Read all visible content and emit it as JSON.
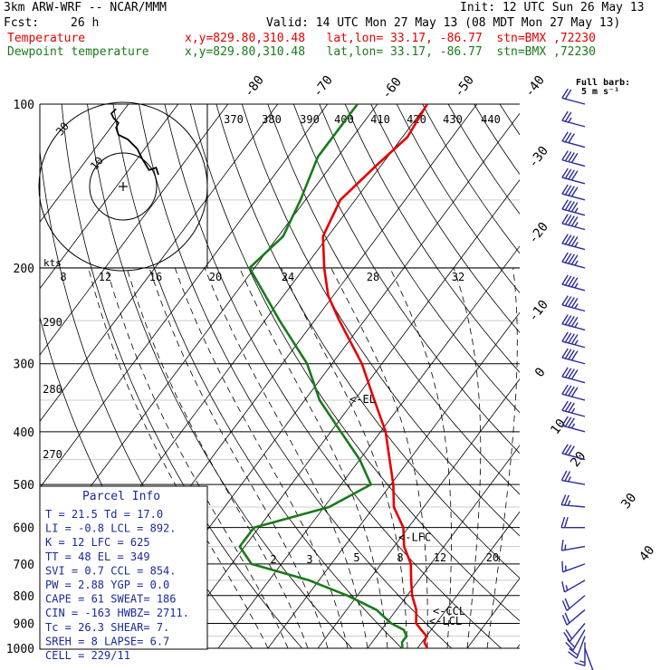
{
  "header": {
    "title": "3km ARW-WRF -- NCAR/MMM",
    "init": "Init: 12 UTC Sun 26 May 13",
    "fcst_label": "Fcst:",
    "fcst_value": "26 h",
    "valid": "Valid: 14 UTC Mon 27 May 13 (08 MDT Mon 27 May 13)",
    "temp_label": "Temperature",
    "temp_loc": "x,y=829.80,310.48   lat,lon= 33.17, -86.77  stn=BMX ,72230",
    "dew_label": "Dewpoint temperature",
    "dew_loc": "x,y=829.80,310.48   lat,lon= 33.17, -86.77  stn=BMX ,72230"
  },
  "barb_legend": {
    "line1": "Full barb:",
    "line2": "5 m s⁻¹"
  },
  "colors": {
    "temperature": "#e60000",
    "dewpoint": "#1a7a1a",
    "lines": "#000000",
    "hodograph": "#000000"
  },
  "chart_data": {
    "type": "skew-t",
    "pressure_levels": [
      "100",
      "200",
      "300",
      "400",
      "500",
      "600",
      "700",
      "800",
      "900",
      "1000"
    ],
    "temperature_labels": [
      "-80",
      "-70",
      "-60",
      "-50",
      "-40",
      "-30",
      "-20",
      "-10",
      "0",
      "10",
      "20",
      "30",
      "40"
    ],
    "theta_labels": [
      "370",
      "380",
      "390",
      "400",
      "410",
      "420",
      "430",
      "440"
    ],
    "dry_adiabat_labels": [
      "290",
      "280",
      "270"
    ],
    "mixing_ratio_labels": [
      "2",
      "3",
      "5",
      "8",
      "12",
      "20"
    ],
    "series": [
      {
        "name": "Temperature",
        "points": [
          [
            1000,
            22
          ],
          [
            975,
            20.5
          ],
          [
            950,
            20
          ],
          [
            925,
            18
          ],
          [
            900,
            16
          ],
          [
            850,
            14
          ],
          [
            800,
            11
          ],
          [
            750,
            8.5
          ],
          [
            700,
            6
          ],
          [
            650,
            2
          ],
          [
            600,
            -1
          ],
          [
            550,
            -6
          ],
          [
            500,
            -9.5
          ],
          [
            450,
            -14
          ],
          [
            400,
            -19
          ],
          [
            350,
            -26
          ],
          [
            300,
            -34
          ],
          [
            250,
            -45
          ],
          [
            225,
            -51
          ],
          [
            200,
            -56
          ],
          [
            175,
            -61
          ],
          [
            150,
            -63
          ],
          [
            130,
            -61
          ],
          [
            115,
            -59
          ],
          [
            100,
            -60
          ]
        ]
      },
      {
        "name": "Dewpoint temperature",
        "points": [
          [
            1000,
            17
          ],
          [
            975,
            16
          ],
          [
            950,
            16
          ],
          [
            925,
            14.5
          ],
          [
            900,
            11
          ],
          [
            850,
            6
          ],
          [
            800,
            -2
          ],
          [
            750,
            -12
          ],
          [
            700,
            -26
          ],
          [
            650,
            -31
          ],
          [
            600,
            -31
          ],
          [
            550,
            -19
          ],
          [
            500,
            -14
          ],
          [
            450,
            -20
          ],
          [
            400,
            -28
          ],
          [
            350,
            -37
          ],
          [
            300,
            -45
          ],
          [
            250,
            -57
          ],
          [
            200,
            -71
          ],
          [
            175,
            -69
          ],
          [
            150,
            -71
          ],
          [
            125,
            -74
          ],
          [
            100,
            -74
          ]
        ]
      }
    ],
    "annotations": [
      {
        "text": "<-EL",
        "p": 349
      },
      {
        "text": "<-LFC",
        "p": 625
      },
      {
        "text": "<-CCL",
        "p": 854
      },
      {
        "text": "<-LCL",
        "p": 892
      }
    ],
    "hodograph": {
      "speed_labels": [
        "30",
        "10"
      ],
      "kts_label": "kts",
      "speed_scale_labels": [
        "8",
        "12",
        "16",
        "20",
        "24",
        "28",
        "32"
      ],
      "trace_uv": [
        [
          15,
          5
        ],
        [
          14,
          8
        ],
        [
          11,
          7
        ],
        [
          8,
          12
        ],
        [
          6,
          16
        ],
        [
          2,
          20
        ],
        [
          -2,
          22
        ],
        [
          -3,
          25
        ],
        [
          -2,
          27
        ],
        [
          -4,
          29
        ],
        [
          -5,
          31
        ],
        [
          -3,
          33
        ]
      ]
    },
    "wind_barbs": [
      {
        "p": 1000,
        "dir": 160,
        "spd": 10
      },
      {
        "p": 975,
        "dir": 180,
        "spd": 15
      },
      {
        "p": 950,
        "dir": 200,
        "spd": 20
      },
      {
        "p": 925,
        "dir": 210,
        "spd": 20
      },
      {
        "p": 900,
        "dir": 220,
        "spd": 20
      },
      {
        "p": 850,
        "dir": 230,
        "spd": 20
      },
      {
        "p": 800,
        "dir": 230,
        "spd": 20
      },
      {
        "p": 750,
        "dir": 240,
        "spd": 15
      },
      {
        "p": 700,
        "dir": 250,
        "spd": 15
      },
      {
        "p": 650,
        "dir": 260,
        "spd": 15
      },
      {
        "p": 600,
        "dir": 270,
        "spd": 20
      },
      {
        "p": 550,
        "dir": 275,
        "spd": 25
      },
      {
        "p": 500,
        "dir": 280,
        "spd": 25
      },
      {
        "p": 450,
        "dir": 285,
        "spd": 30
      },
      {
        "p": 400,
        "dir": 285,
        "spd": 35
      },
      {
        "p": 375,
        "dir": 285,
        "spd": 35
      },
      {
        "p": 350,
        "dir": 285,
        "spd": 40
      },
      {
        "p": 325,
        "dir": 285,
        "spd": 40
      },
      {
        "p": 300,
        "dir": 285,
        "spd": 40
      },
      {
        "p": 280,
        "dir": 285,
        "spd": 45
      },
      {
        "p": 260,
        "dir": 285,
        "spd": 45
      },
      {
        "p": 240,
        "dir": 285,
        "spd": 45
      },
      {
        "p": 220,
        "dir": 285,
        "spd": 45
      },
      {
        "p": 200,
        "dir": 285,
        "spd": 45
      },
      {
        "p": 185,
        "dir": 285,
        "spd": 45
      },
      {
        "p": 170,
        "dir": 285,
        "spd": 45
      },
      {
        "p": 160,
        "dir": 285,
        "spd": 45
      },
      {
        "p": 150,
        "dir": 285,
        "spd": 40
      },
      {
        "p": 140,
        "dir": 285,
        "spd": 40
      },
      {
        "p": 130,
        "dir": 285,
        "spd": 40
      },
      {
        "p": 120,
        "dir": 285,
        "spd": 30
      },
      {
        "p": 110,
        "dir": 285,
        "spd": 25
      },
      {
        "p": 100,
        "dir": 285,
        "spd": 20
      }
    ]
  },
  "parcel_info": {
    "title": "Parcel Info",
    "rows": [
      "T  =    21.5  Td =  17.0",
      "LI =    -0.8  LCL =  892.",
      "K  =      12  LFC =  625",
      "TT =      48  EL  =  349",
      "SVI =    0.7  CCL =  854.",
      "PW =    2.88  YGP =   0.0",
      "CAPE =    61  SWEAT=  186",
      "CIN =   -163  HWBZ= 2711.",
      "Tc =    26.3  SHEAR=   7.",
      "SREH =     8  LAPSE=   6.7",
      "CELL = 229/11"
    ]
  }
}
